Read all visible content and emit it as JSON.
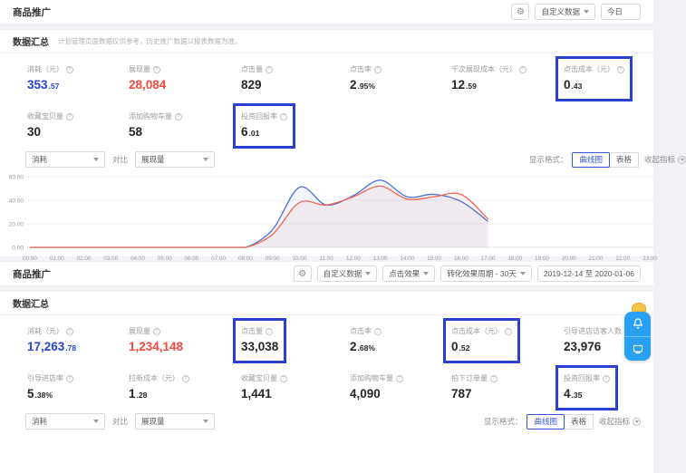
{
  "colors": {
    "accent_blue": "#2843d8",
    "accent_red": "#f5483b",
    "highlight_border": "#2b3fd0",
    "line_blue": "#4a6edb",
    "line_red": "#f2654e",
    "widget_blue": "#2aa0f5"
  },
  "panel1": {
    "title": "商品推广",
    "toolbar": {
      "customize": "自定义数据",
      "date": "今日"
    },
    "summary": {
      "title": "数据汇总",
      "note": "计划管理页面数据仅供参考，历史推广数据以报表数据为准。"
    },
    "metrics": [
      {
        "label": "消耗（元）",
        "value": "353.57",
        "style": "blue"
      },
      {
        "label": "展现量",
        "value": "28,084",
        "style": "red"
      },
      {
        "label": "点击量",
        "value": "829"
      },
      {
        "label": "点击率",
        "value": "2.95%"
      },
      {
        "label": "千次展现成本（元）",
        "value": "12.59"
      },
      {
        "label": "点击成本（元）",
        "value": "0.43",
        "highlight": true
      },
      {
        "label": "收藏宝贝量",
        "value": "30"
      },
      {
        "label": "添加购物车量",
        "value": "58"
      },
      {
        "label": "投资回报率",
        "value": "6.01",
        "highlight": true
      }
    ],
    "controls": {
      "metric": "消耗",
      "vs": "对比",
      "compare": "展现量",
      "display_label": "显示格式：",
      "options": [
        "曲线图",
        "表格"
      ],
      "selected": "曲线图",
      "collapse": "收起指标"
    }
  },
  "chart_data": {
    "type": "line",
    "x": [
      "00:00",
      "01:00",
      "02:00",
      "03:00",
      "04:00",
      "05:00",
      "06:00",
      "07:00",
      "08:00",
      "09:00",
      "10:00",
      "11:00",
      "12:00",
      "13:00",
      "14:00",
      "15:00",
      "16:00",
      "17:00",
      "18:00",
      "19:00",
      "20:00",
      "21:00",
      "22:00",
      "23:00"
    ],
    "series": [
      {
        "name": "消耗",
        "color": "#4a6edb",
        "values": [
          0,
          0,
          0,
          0,
          0,
          0,
          0,
          0,
          0,
          15,
          51,
          36,
          44,
          57,
          43,
          45,
          39,
          22
        ]
      },
      {
        "name": "展现量",
        "color": "#f2654e",
        "values": [
          0,
          0,
          0,
          0,
          0,
          0,
          0,
          0,
          0,
          11,
          38,
          36,
          43,
          52,
          41,
          43,
          45,
          24
        ]
      }
    ],
    "ylim": [
      0,
      60
    ],
    "yticks": [
      "0.00",
      "20.00",
      "40.00",
      "60.00"
    ],
    "grid": true,
    "legend": "none",
    "note": "data ends at 17:00; hours 18:00-23:00 have no values"
  },
  "panel2": {
    "title": "商品推广",
    "toolbar": {
      "customize": "自定义数据",
      "click_effect": "点击效果",
      "conversion_cycle": "转化效果周期 - 30天",
      "date_range": "2019-12-14  至  2020-01-06"
    },
    "summary": {
      "title": "数据汇总"
    },
    "metrics": [
      {
        "label": "消耗（元）",
        "value": "17,263.78",
        "style": "blue"
      },
      {
        "label": "展现量",
        "value": "1,234,148",
        "style": "red"
      },
      {
        "label": "点击量",
        "value": "33,038",
        "highlight": true
      },
      {
        "label": "点击率",
        "value": "2.68%"
      },
      {
        "label": "点击成本（元）",
        "value": "0.52",
        "highlight": true
      },
      {
        "label": "引导进店访客人数",
        "value": "23,976"
      },
      {
        "label": "引导进店率",
        "value": "5.38%"
      },
      {
        "label": "拉新成本（元）",
        "value": "1.28"
      },
      {
        "label": "收藏宝贝量",
        "value": "1,441"
      },
      {
        "label": "添加购物车量",
        "value": "4,090"
      },
      {
        "label": "拍下订单量",
        "value": "787"
      },
      {
        "label": "投资回报率",
        "value": "4.35",
        "highlight": true
      }
    ],
    "controls": {
      "metric": "消耗",
      "vs": "对比",
      "compare": "展现量",
      "display_label": "显示格式：",
      "options": [
        "曲线图",
        "表格"
      ],
      "selected": "曲线图",
      "collapse": "收起指标"
    }
  },
  "float_widget": {
    "icons": [
      "bell-icon",
      "chat-icon"
    ]
  }
}
